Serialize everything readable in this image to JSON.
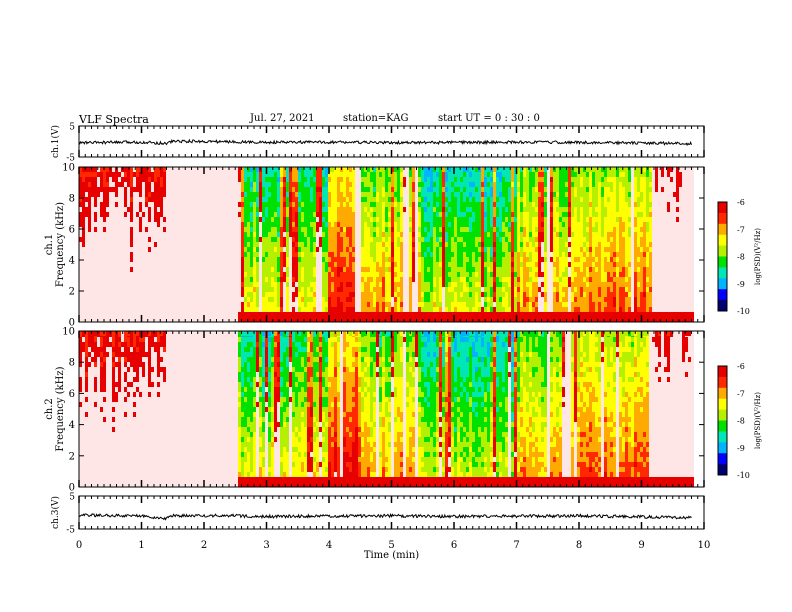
{
  "header": {
    "title": "VLF Spectra",
    "date": "Jul. 27, 2021",
    "station": "station=KAG",
    "start": "start UT = 0 : 30 : 0"
  },
  "colors": {
    "scale": [
      "#00006e",
      "#0000ff",
      "#00b4ff",
      "#00e6b4",
      "#00e100",
      "#b4f000",
      "#ffff00",
      "#ffaa00",
      "#ff2800",
      "#e60000",
      "#ffe6e6"
    ],
    "line": "#000000"
  },
  "chart_data": [
    {
      "type": "line",
      "ylabel": "ch.1(V)",
      "xlim": [
        0,
        10
      ],
      "ylim": [
        -5,
        5
      ],
      "yticks": [
        "5",
        "-5"
      ],
      "x": [
        0,
        0.5,
        1.0,
        1.4,
        1.5,
        2.0,
        2.5,
        3.0,
        4.0,
        5.0,
        6.0,
        7.0,
        8.0,
        9.0,
        9.8
      ],
      "y": [
        -0.4,
        -0.3,
        -0.2,
        -0.6,
        0.1,
        0.0,
        -0.1,
        -0.3,
        -0.2,
        -0.4,
        -0.3,
        -0.2,
        -0.3,
        -0.5,
        -0.7
      ]
    },
    {
      "type": "heatmap",
      "ylabel": "ch.1\nFrequency (kHz)",
      "xlim": [
        0,
        10
      ],
      "ylim": [
        0,
        10
      ],
      "yticks": [
        "0",
        "2",
        "4",
        "6",
        "8",
        "10"
      ],
      "colorbar": {
        "label": "log(PSD)(V²/Hz)",
        "range": [
          -10,
          -6
        ],
        "ticks": [
          "-6",
          "-7",
          "-8",
          "-9",
          "-10"
        ]
      }
    },
    {
      "type": "heatmap",
      "ylabel": "ch.2\nFrequency (kHz)",
      "xlim": [
        0,
        10
      ],
      "ylim": [
        0,
        10
      ],
      "yticks": [
        "0",
        "2",
        "4",
        "6",
        "8",
        "10"
      ],
      "colorbar": {
        "label": "log(PSD)(V²/Hz)",
        "range": [
          -10,
          -6
        ],
        "ticks": [
          "-6",
          "-7",
          "-8",
          "-9",
          "-10"
        ]
      }
    },
    {
      "type": "line",
      "ylabel": "ch.3(V)",
      "xlim": [
        0,
        10
      ],
      "ylim": [
        -5,
        5
      ],
      "yticks": [
        "5",
        "-5"
      ],
      "xlabel": "Time (min)",
      "xticks": [
        "0",
        "1",
        "2",
        "3",
        "4",
        "5",
        "6",
        "7",
        "8",
        "9",
        "10"
      ],
      "x": [
        0,
        0.5,
        1.0,
        1.4,
        1.5,
        2.0,
        2.5,
        3.0,
        4.0,
        5.0,
        6.0,
        7.0,
        8.0,
        9.0,
        9.8
      ],
      "y": [
        -0.8,
        -0.9,
        -1.0,
        -1.8,
        -1.0,
        -0.9,
        -1.0,
        -1.2,
        -1.1,
        -1.0,
        -1.2,
        -1.1,
        -1.0,
        -1.3,
        -1.6
      ]
    }
  ]
}
